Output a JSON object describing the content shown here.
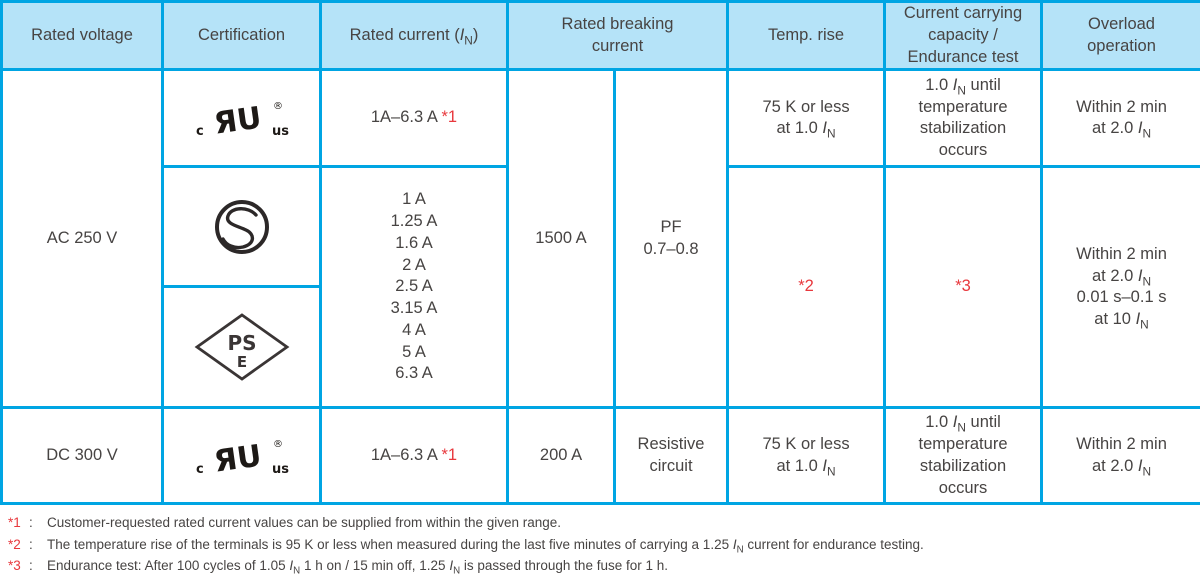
{
  "colors": {
    "border": "#00A5E3",
    "header_bg": "#B5E3F8",
    "text": "#474443",
    "red": "#E8383D",
    "logo_black": "#1d1916"
  },
  "header": {
    "columns": [
      "Rated voltage",
      "Certification",
      "Rated current ({IN})",
      "Rated breaking\ncurrent",
      "Temp. rise",
      "Current carrying\ncapacity /\nEndurance test",
      "Overload\noperation"
    ]
  },
  "ac": {
    "voltage": "AC 250 V",
    "current_ul": "1A–6.3 A {r:*1}",
    "current_list": "1 A\n1.25 A\n1.6 A\n2 A\n2.5 A\n3.15 A\n4 A\n5 A\n6.3 A",
    "breaking": "1500 A",
    "pf": "PF\n0.7–0.8",
    "temp_ul": "75 K or less\nat 1.0 {IN}",
    "temp_note": "{r:*2}",
    "capacity_ul": "1.0 {IN} until\ntemperature\nstabilization\noccurs",
    "capacity_note": "{r:*3}",
    "overload_ul": "Within 2 min\nat 2.0 {IN}",
    "overload_full": "Within 2 min\nat 2.0 {IN}\n0.01 s–0.1 s\nat 10 {IN}"
  },
  "dc": {
    "voltage": "DC 300 V",
    "current": "1A–6.3 A {r:*1}",
    "breaking": "200 A",
    "circuit": "Resistive\ncircuit",
    "temp": "75 K or less\nat 1.0 {IN}",
    "capacity": "1.0 {IN} until\ntemperature\nstabilization\noccurs",
    "overload": "Within 2 min\nat 2.0 {IN}"
  },
  "logos": {
    "culus": {
      "name": "cULus",
      "c": "c",
      "mark": "ЯU",
      "reg": "®",
      "us": "us"
    },
    "s_mark": {
      "name": "S-mark"
    },
    "pse": {
      "name": "PSE",
      "line1": "PS",
      "line2": "E"
    }
  },
  "footnote_separator": ":",
  "footnotes": [
    {
      "marker": "*1",
      "text": "Customer-requested rated current values can be supplied from within the given range."
    },
    {
      "marker": "*2",
      "text": "The temperature rise of the terminals is 95 K or less when measured during the last five minutes of carrying a 1.25 {IN} current for endurance testing."
    },
    {
      "marker": "*3",
      "text": "Endurance test: After 100 cycles of 1.05 {IN} 1 h on / 15 min off, 1.25 {IN} is passed through the fuse for 1 h."
    }
  ]
}
